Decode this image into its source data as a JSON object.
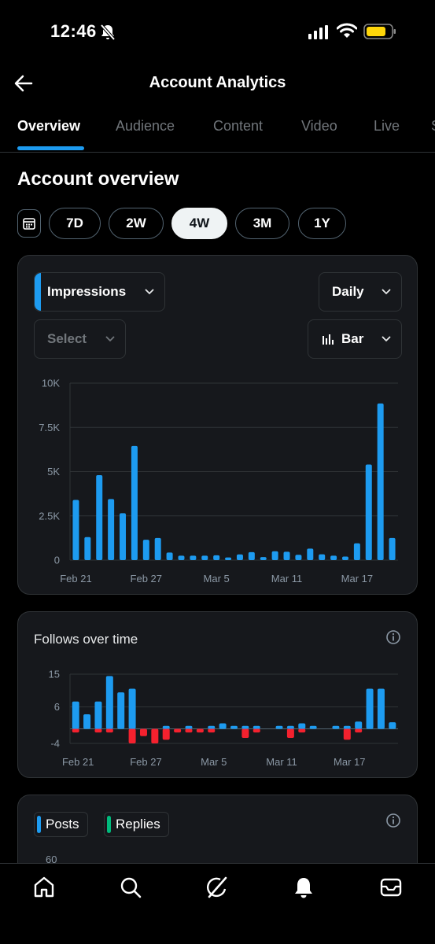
{
  "status_bar": {
    "time": "12:46"
  },
  "header": {
    "title": "Account Analytics"
  },
  "tabs": [
    {
      "label": "Overview",
      "active": true
    },
    {
      "label": "Audience",
      "active": false
    },
    {
      "label": "Content",
      "active": false
    },
    {
      "label": "Video",
      "active": false
    },
    {
      "label": "Live",
      "active": false
    },
    {
      "label": "S",
      "active": false
    }
  ],
  "section_title": "Account overview",
  "ranges": [
    {
      "label": "7D",
      "active": false
    },
    {
      "label": "2W",
      "active": false
    },
    {
      "label": "4W",
      "active": true
    },
    {
      "label": "3M",
      "active": false
    },
    {
      "label": "1Y",
      "active": false
    }
  ],
  "impressions_card": {
    "metric_label": "Impressions",
    "period_label": "Daily",
    "select_label": "Select",
    "chart_type_label": "Bar"
  },
  "follows_card": {
    "title": "Follows over time"
  },
  "posts_card": {
    "legend": [
      "Posts",
      "Replies"
    ],
    "partial_tick": "60"
  },
  "colors": {
    "accent": "#1d9bf0",
    "negative": "#f4212e",
    "replies": "#00ba7c",
    "card": "#16181c"
  },
  "chart_data": [
    {
      "type": "bar",
      "title": "",
      "series": [
        {
          "name": "Impressions",
          "values": [
            3400,
            1300,
            4800,
            3450,
            2650,
            6450,
            1150,
            1250,
            430,
            250,
            250,
            250,
            270,
            150,
            320,
            450,
            170,
            500,
            470,
            300,
            650,
            330,
            250,
            200,
            950,
            5400,
            8850,
            1250
          ]
        }
      ],
      "y_ticks": [
        "10K",
        "7.5K",
        "5K",
        "2.5K",
        "0"
      ],
      "x_ticks": [
        "Feb 21",
        "Feb 27",
        "Mar 5",
        "Mar 11",
        "Mar 17"
      ],
      "ylim": [
        0,
        10000
      ],
      "grid": true
    },
    {
      "type": "bar",
      "title": "Follows over time",
      "series": [
        {
          "name": "Follows",
          "values": [
            7.5,
            4,
            7.5,
            14.5,
            10,
            11,
            0,
            0,
            0.8,
            0,
            0.8,
            0,
            0.8,
            1.5,
            0.8,
            0.8,
            0.8,
            0,
            0.8,
            0.8,
            1.5,
            0.8,
            0,
            0.8,
            0.8,
            2,
            11,
            11,
            1.8
          ]
        },
        {
          "name": "Unfollows",
          "values": [
            -1,
            0,
            -1,
            -1,
            0,
            -4,
            -2,
            -4,
            -3,
            -1,
            -1,
            -1,
            -1,
            0,
            0,
            -2.5,
            -1,
            0,
            0,
            -2.5,
            -1,
            0,
            0,
            0,
            -3,
            -1,
            0,
            0,
            0
          ]
        }
      ],
      "y_ticks": [
        "15",
        "6",
        "-4"
      ],
      "x_ticks": [
        "Feb 21",
        "Feb 27",
        "Mar 5",
        "Mar 11",
        "Mar 17"
      ],
      "ylim": [
        -4,
        15
      ],
      "grid": true
    }
  ]
}
